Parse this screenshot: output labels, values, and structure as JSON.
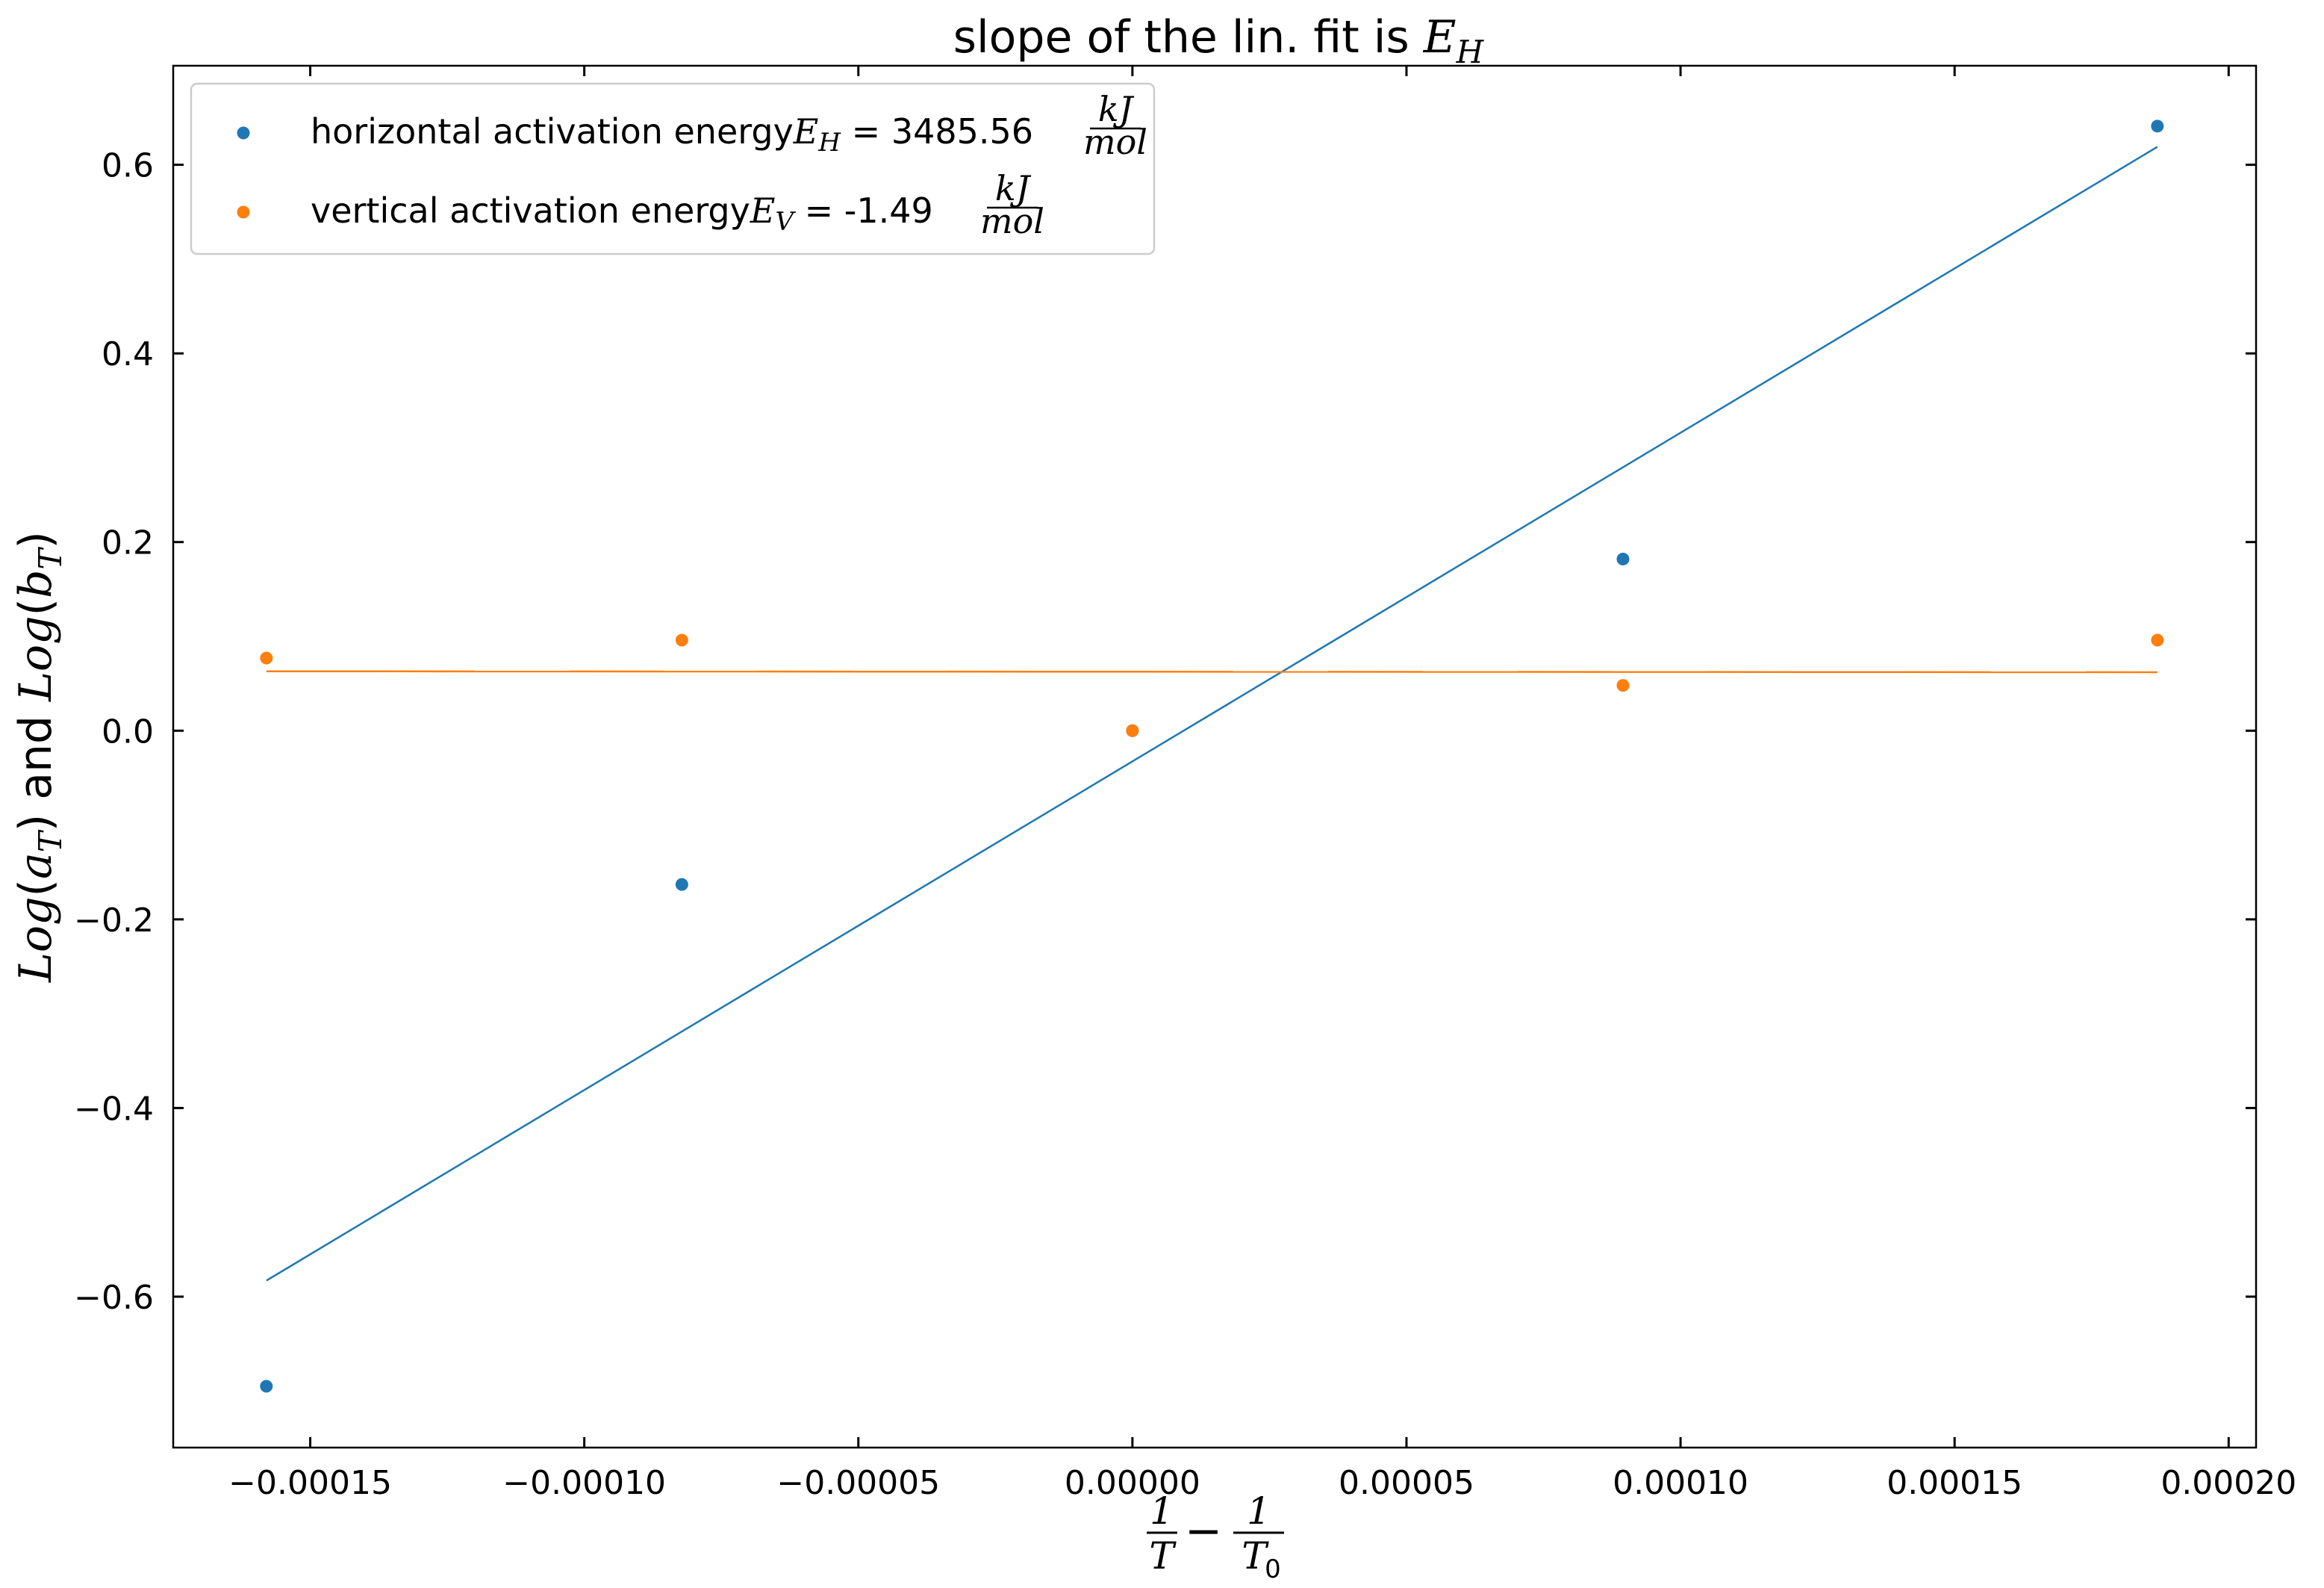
{
  "chart_data": {
    "type": "scatter",
    "title_prefix": "slope of the lin. fit is ",
    "title_math": "E",
    "title_math_sub": "H",
    "xlabel": "1/T − 1/T0",
    "ylabel": "Log(aT) and Log(bT)",
    "xlim": [
      -0.000175,
      0.000205
    ],
    "ylim": [
      -0.76,
      0.705
    ],
    "xticks": [
      -0.00015,
      -0.0001,
      -5e-05,
      0.0,
      5e-05,
      0.0001,
      0.00015,
      0.0002
    ],
    "xtick_labels": [
      "−0.00015",
      "−0.00010",
      "−0.00005",
      "0.00000",
      "0.00005",
      "0.00010",
      "0.00015",
      "0.00020"
    ],
    "yticks": [
      -0.6,
      -0.4,
      -0.2,
      0.0,
      0.2,
      0.4,
      0.6
    ],
    "ytick_labels": [
      "−0.6",
      "−0.4",
      "−0.2",
      "0.0",
      "0.2",
      "0.4",
      "0.6"
    ],
    "legend_position": "top-left",
    "grid": false,
    "series": [
      {
        "name": "horizontal activation energyE_H = 3485.56 kJ/mol",
        "legend_text": "horizontal activation energy",
        "legend_math": "E",
        "legend_sub": "H",
        "legend_value": " = 3485.56",
        "legend_unit_num": "kJ",
        "legend_unit_den": "mol",
        "color": "#1f77b4",
        "x": [
          -0.000158,
          -8.22e-05,
          0.0,
          8.95e-05,
          0.000187
        ],
        "y": [
          -0.695,
          -0.163,
          0.0,
          0.182,
          0.641
        ],
        "fit": {
          "x": [
            -0.000158,
            0.000187
          ],
          "y": [
            -0.583,
            0.619
          ]
        }
      },
      {
        "name": "vertical activation energyE_V = -1.49 kJ/mol",
        "legend_text": "vertical activation energy",
        "legend_math": "E",
        "legend_sub": "V",
        "legend_value": " = -1.49",
        "legend_unit_num": "kJ",
        "legend_unit_den": "mol",
        "color": "#ff7f0e",
        "x": [
          -0.000158,
          -8.22e-05,
          0.0,
          8.95e-05,
          0.000187
        ],
        "y": [
          0.077,
          0.096,
          0.0,
          0.048,
          0.096
        ],
        "fit": {
          "x": [
            -0.000158,
            0.000187
          ],
          "y": [
            0.063,
            0.062
          ]
        }
      }
    ]
  }
}
